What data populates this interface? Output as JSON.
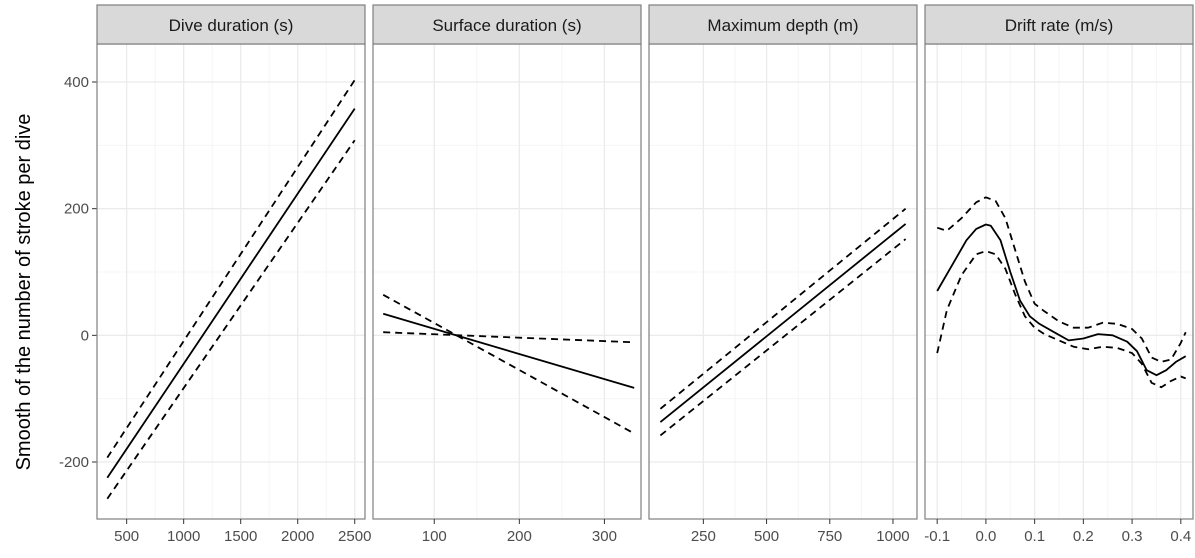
{
  "chart_data": {
    "type": "line",
    "ylabel": "Smooth of the number of stroke per dive",
    "shared_y": {
      "ylim": [
        -290,
        460
      ],
      "ticks": [
        -200,
        0,
        200,
        400
      ]
    },
    "colors": {
      "strip_fill": "#d9d9d9",
      "panel_border": "#7f7f7f",
      "grid_major": "#ebebeb",
      "grid_minor": "#f5f5f5",
      "line": "#000000"
    },
    "panels": [
      {
        "title": "Dive duration (s)",
        "xlim": [
          240,
          2590
        ],
        "xticks": [
          500,
          1000,
          1500,
          2000,
          2500
        ],
        "series": [
          {
            "name": "fit",
            "style": "solid",
            "x": [
              330,
              2500
            ],
            "y": [
              -225,
              358
            ]
          },
          {
            "name": "upper",
            "style": "dashed",
            "x": [
              330,
              2500
            ],
            "y": [
              -193,
              403
            ]
          },
          {
            "name": "lower",
            "style": "dashed",
            "x": [
              330,
              2500
            ],
            "y": [
              -258,
              308
            ]
          }
        ]
      },
      {
        "title": "Surface duration (s)",
        "xlim": [
          28,
          343
        ],
        "xticks": [
          100,
          200,
          300
        ],
        "series": [
          {
            "name": "fit",
            "style": "solid",
            "x": [
              40,
              335
            ],
            "y": [
              34,
              -83
            ]
          },
          {
            "name": "upper",
            "style": "dashed",
            "x": [
              40,
              335
            ],
            "y": [
              5,
              -11
            ]
          },
          {
            "name": "lower",
            "style": "dashed",
            "x": [
              40,
              335
            ],
            "y": [
              64,
              -155
            ]
          }
        ]
      },
      {
        "title": "Maximum depth (m)",
        "xlim": [
          35,
          1095
        ],
        "xticks": [
          250,
          500,
          750,
          1000
        ],
        "series": [
          {
            "name": "fit",
            "style": "solid",
            "x": [
              80,
              1050
            ],
            "y": [
              -137,
              176
            ]
          },
          {
            "name": "upper",
            "style": "dashed",
            "x": [
              80,
              1050
            ],
            "y": [
              -116,
              200
            ]
          },
          {
            "name": "lower",
            "style": "dashed",
            "x": [
              80,
              1050
            ],
            "y": [
              -158,
              152
            ]
          }
        ]
      },
      {
        "title": "Drift rate (m/s)",
        "xlim": [
          -0.125,
          0.425
        ],
        "xticks": [
          -0.1,
          0.0,
          0.1,
          0.2,
          0.3,
          0.4
        ],
        "xtick_labels": [
          "-0.1",
          "0.0",
          "0.1",
          "0.2",
          "0.3",
          "0.4"
        ],
        "series": [
          {
            "name": "fit",
            "style": "solid",
            "x": [
              -0.1,
              -0.07,
              -0.04,
              -0.02,
              0.0,
              0.01,
              0.03,
              0.05,
              0.07,
              0.09,
              0.11,
              0.14,
              0.17,
              0.2,
              0.23,
              0.26,
              0.29,
              0.31,
              0.33,
              0.35,
              0.37,
              0.39,
              0.41
            ],
            "y": [
              70,
              110,
              150,
              168,
              175,
              173,
              150,
              100,
              55,
              30,
              18,
              5,
              -8,
              -5,
              2,
              0,
              -10,
              -25,
              -55,
              -63,
              -55,
              -42,
              -33
            ]
          },
          {
            "name": "upper",
            "style": "dashed",
            "x": [
              -0.1,
              -0.08,
              -0.05,
              -0.02,
              0.0,
              0.02,
              0.04,
              0.06,
              0.08,
              0.1,
              0.12,
              0.15,
              0.18,
              0.21,
              0.24,
              0.27,
              0.3,
              0.32,
              0.34,
              0.36,
              0.38,
              0.4,
              0.41
            ],
            "y": [
              170,
              165,
              185,
              210,
              218,
              212,
              185,
              135,
              85,
              50,
              38,
              22,
              12,
              12,
              20,
              18,
              10,
              -5,
              -35,
              -42,
              -38,
              -12,
              5
            ]
          },
          {
            "name": "lower",
            "style": "dashed",
            "x": [
              -0.1,
              -0.08,
              -0.05,
              -0.02,
              0.0,
              0.02,
              0.04,
              0.06,
              0.08,
              0.1,
              0.12,
              0.15,
              0.18,
              0.21,
              0.24,
              0.27,
              0.3,
              0.32,
              0.34,
              0.36,
              0.38,
              0.4,
              0.41
            ],
            "y": [
              -28,
              40,
              95,
              128,
              133,
              128,
              105,
              65,
              30,
              12,
              2,
              -8,
              -18,
              -22,
              -18,
              -20,
              -28,
              -45,
              -75,
              -82,
              -72,
              -65,
              -68
            ]
          }
        ]
      }
    ]
  }
}
